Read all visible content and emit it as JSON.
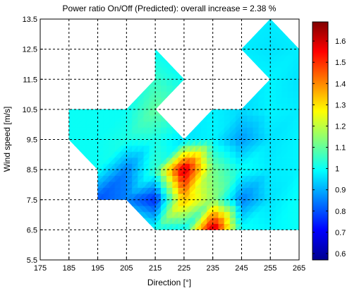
{
  "chart_data": {
    "type": "heatmap",
    "title": "Power ratio On/Off (Predicted): overall increase = 2.38 %",
    "xlabel": "Direction [°]",
    "ylabel": "Wind speed [m/s]",
    "xlim": [
      175,
      265
    ],
    "ylim": [
      5.5,
      13.5
    ],
    "x_ticks": [
      "175",
      "185",
      "195",
      "205",
      "215",
      "225",
      "235",
      "245",
      "255",
      "265"
    ],
    "y_ticks": [
      "5.5",
      "6.5",
      "7.5",
      "8.5",
      "9.5",
      "10.5",
      "11.5",
      "12.5",
      "13.5"
    ],
    "grid": true,
    "colormap": "jet",
    "colorbar": {
      "range": [
        0.57,
        1.69
      ],
      "ticks": [
        "0.6",
        "0.7",
        "0.8",
        "0.9",
        "1",
        "1.1",
        "1.2",
        "1.3",
        "1.4",
        "1.5",
        "1.6"
      ]
    },
    "x": [
      185,
      195,
      205,
      215,
      225,
      235,
      245,
      255,
      265
    ],
    "y": [
      6.5,
      7.5,
      8.5,
      9.5,
      10.5,
      11.5,
      12.5,
      13.5
    ],
    "z": [
      [
        null,
        null,
        null,
        1.0,
        0.98,
        1.65,
        1.0,
        0.98,
        1.0
      ],
      [
        null,
        0.8,
        0.85,
        0.75,
        1.35,
        1.15,
        0.85,
        0.96,
        1.0
      ],
      [
        null,
        1.0,
        0.85,
        1.05,
        1.62,
        1.12,
        1.0,
        0.97,
        0.98
      ],
      [
        1.0,
        1.0,
        1.02,
        1.02,
        0.96,
        0.98,
        0.88,
        0.96,
        0.98
      ],
      [
        1.0,
        1.0,
        1.0,
        1.1,
        null,
        0.98,
        0.95,
        0.98,
        0.97
      ],
      [
        null,
        null,
        null,
        1.05,
        1.0,
        null,
        null,
        0.98,
        0.96
      ],
      [
        null,
        null,
        null,
        1.0,
        null,
        null,
        0.97,
        0.96,
        0.97
      ],
      [
        null,
        null,
        null,
        null,
        null,
        null,
        null,
        0.97,
        null
      ]
    ]
  }
}
